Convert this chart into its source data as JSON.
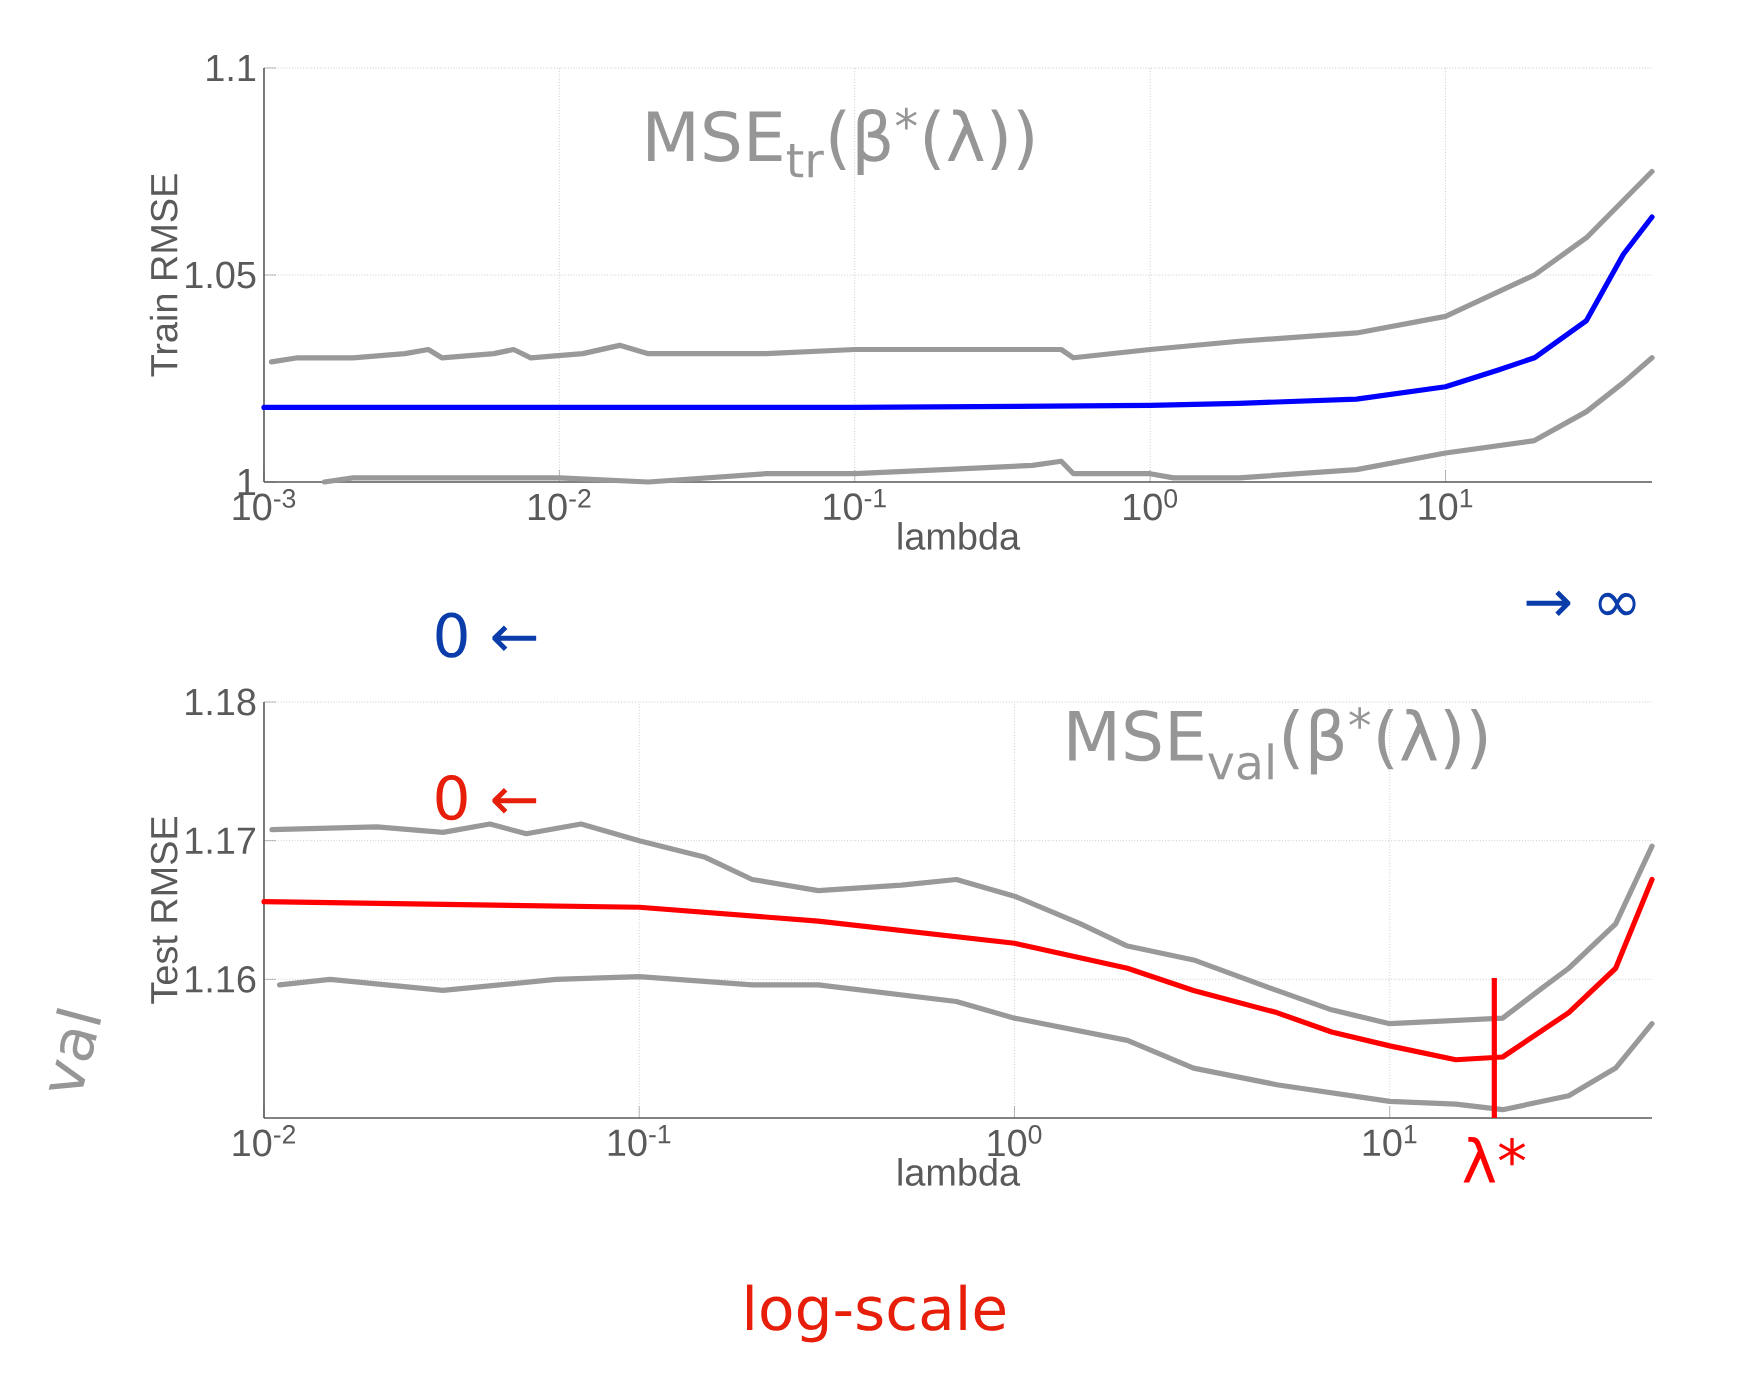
{
  "chart_data": [
    {
      "type": "line",
      "xlabel": "lambda",
      "ylabel": "Train RMSE",
      "log": "x",
      "grid": true,
      "xlim": [
        0.001,
        50
      ],
      "ylim": [
        1,
        1.1
      ],
      "xticks": [
        {
          "value": 0.001,
          "label": "10$^{-3}$"
        },
        {
          "value": 0.01,
          "label": "10$^{-2}$"
        },
        {
          "value": 0.1,
          "label": "10$^{-1}$"
        },
        {
          "value": 1,
          "label": "10$^{0}$"
        },
        {
          "value": 10,
          "label": "10$^{1}$"
        }
      ],
      "yticks": [
        1,
        1.05,
        1.1
      ],
      "series": [
        {
          "color": "#0000ff",
          "x": [
            0.001,
            0.01,
            0.1,
            1,
            2,
            5,
            10,
            15,
            20,
            30,
            40,
            50
          ],
          "values": [
            1.018,
            1.018,
            1.018,
            1.0185,
            1.019,
            1.02,
            1.023,
            1.027,
            1.03,
            1.039,
            1.055,
            1.064
          ]
        },
        {
          "color": "#999999",
          "x": [
            0.00106,
            0.0013,
            0.002,
            0.003,
            0.0036,
            0.004,
            0.006,
            0.007,
            0.008,
            0.012,
            0.016,
            0.02,
            0.05,
            0.1,
            0.3,
            0.5,
            0.55,
            1,
            2,
            5,
            10,
            20,
            30,
            50
          ],
          "values": [
            1.029,
            1.03,
            1.03,
            1.031,
            1.032,
            1.03,
            1.031,
            1.032,
            1.03,
            1.031,
            1.033,
            1.031,
            1.031,
            1.032,
            1.032,
            1.032,
            1.03,
            1.032,
            1.034,
            1.036,
            1.04,
            1.05,
            1.059,
            1.075
          ]
        },
        {
          "color": "#999999",
          "x": [
            0.0016,
            0.002,
            0.003,
            0.005,
            0.01,
            0.02,
            0.05,
            0.1,
            0.2,
            0.4,
            0.5,
            0.55,
            1,
            1.2,
            2,
            5,
            10,
            20,
            30,
            40,
            50
          ],
          "values": [
            1.0,
            1.001,
            1.001,
            1.001,
            1.001,
            1.0,
            1.002,
            1.002,
            1.003,
            1.004,
            1.005,
            1.002,
            1.002,
            1.001,
            1.001,
            1.003,
            1.007,
            1.01,
            1.017,
            1.024,
            1.03
          ]
        }
      ],
      "annotations": [
        "MSE$_{tr}$(β$^{*}$(λ))",
        "0 ←",
        "→ ∞"
      ]
    },
    {
      "type": "line",
      "xlabel": "lambda",
      "ylabel": "Test RMSE",
      "log": "x",
      "grid": true,
      "xlim": [
        0.01,
        50
      ],
      "ylim": [
        1.15,
        1.18
      ],
      "xticks": [
        {
          "value": 0.01,
          "label": "10$^{-2}$"
        },
        {
          "value": 0.1,
          "label": "10$^{-1}$"
        },
        {
          "value": 1,
          "label": "10$^{0}$"
        },
        {
          "value": 10,
          "label": "10$^{1}$"
        }
      ],
      "yticks": [
        1.16,
        1.17,
        1.18
      ],
      "series": [
        {
          "color": "#ff0000",
          "x": [
            0.01,
            0.1,
            0.3,
            1,
            2,
            3,
            5,
            7,
            10,
            15,
            20,
            30,
            40,
            50
          ],
          "values": [
            1.1656,
            1.1652,
            1.1642,
            1.1626,
            1.1608,
            1.1592,
            1.1576,
            1.1562,
            1.1552,
            1.1542,
            1.1544,
            1.1576,
            1.1608,
            1.1672
          ]
        },
        {
          "color": "#999999",
          "x": [
            0.0105,
            0.02,
            0.03,
            0.04,
            0.05,
            0.07,
            0.1,
            0.15,
            0.2,
            0.3,
            0.5,
            0.7,
            1,
            1.5,
            2,
            3,
            5,
            7,
            10,
            20,
            25,
            30,
            40,
            50
          ],
          "values": [
            1.1708,
            1.171,
            1.1706,
            1.1712,
            1.1705,
            1.1712,
            1.17,
            1.1688,
            1.1672,
            1.1664,
            1.1668,
            1.1672,
            1.166,
            1.164,
            1.1624,
            1.1614,
            1.1592,
            1.1578,
            1.1568,
            1.1572,
            1.1592,
            1.1608,
            1.164,
            1.1696
          ]
        },
        {
          "color": "#999999",
          "x": [
            0.011,
            0.015,
            0.03,
            0.06,
            0.1,
            0.2,
            0.3,
            0.7,
            1,
            2,
            3,
            5,
            10,
            15,
            20,
            30,
            40,
            50
          ],
          "values": [
            1.1596,
            1.16,
            1.1592,
            1.16,
            1.1602,
            1.1596,
            1.1596,
            1.1584,
            1.1572,
            1.1556,
            1.1536,
            1.1524,
            1.1512,
            1.151,
            1.1506,
            1.1516,
            1.1536,
            1.1568
          ]
        }
      ],
      "ref_lines": [
        {
          "axis": "x",
          "value": 19,
          "label": "λ*",
          "color": "#ff0000"
        }
      ],
      "annotations": [
        "MSE$_{val}$(β$^{*}$(λ))",
        "0 ←",
        "val",
        "log-scale"
      ]
    }
  ]
}
